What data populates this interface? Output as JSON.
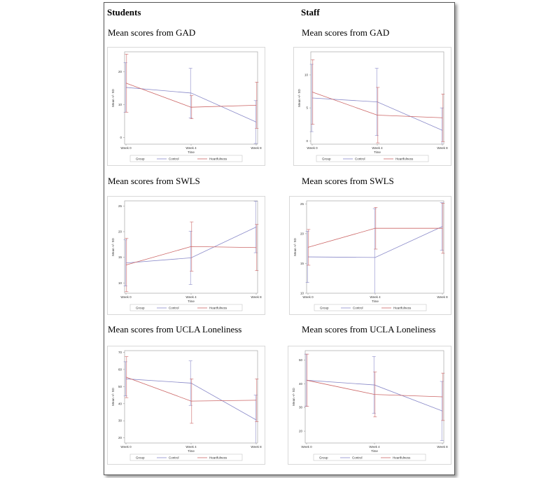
{
  "columns": {
    "students": "Students",
    "staff": "Staff"
  },
  "colors": {
    "control": "#8a8ac9",
    "heartfulness": "#cc6666"
  },
  "common": {
    "xlabel": "Time",
    "ylabel": "Mean +/- SD",
    "legend_title": "Group",
    "series_names": [
      "Control",
      "Heartfulness"
    ],
    "categories": [
      "Week 0",
      "Week 4",
      "Week 8"
    ]
  },
  "chart_data": [
    {
      "id": "students-gad",
      "title": "Mean scores from GAD",
      "type": "line",
      "categories": [
        "Week 0",
        "Week 4",
        "Week 8"
      ],
      "xlabel": "Time",
      "ylabel": "Mean +/- SD",
      "ylim": [
        -2,
        26
      ],
      "yticks": [
        0,
        10,
        20
      ],
      "legend": "bottom",
      "series": [
        {
          "name": "Control",
          "values": [
            15.2,
            13.5,
            4.7
          ],
          "sd": [
            7.5,
            7.5,
            6.5
          ]
        },
        {
          "name": "Heartfulness",
          "values": [
            16.5,
            9.2,
            9.8
          ],
          "sd": [
            8.8,
            3.5,
            7.0
          ]
        }
      ]
    },
    {
      "id": "staff-gad",
      "title": "Mean scores from GAD",
      "type": "line",
      "categories": [
        "Week 0",
        "Week 4",
        "Week 8"
      ],
      "xlabel": "Time",
      "ylabel": "Mean +/- SD",
      "ylim": [
        -0.5,
        13.5
      ],
      "yticks": [
        0,
        5,
        10
      ],
      "legend": "bottom",
      "series": [
        {
          "name": "Control",
          "values": [
            6.5,
            5.9,
            1.6
          ],
          "sd": [
            5.1,
            5.1,
            3.4
          ]
        },
        {
          "name": "Heartfulness",
          "values": [
            7.4,
            3.9,
            3.5
          ],
          "sd": [
            4.9,
            4.2,
            3.6
          ]
        }
      ]
    },
    {
      "id": "students-swls",
      "title": "Mean scores from SWLS",
      "type": "line",
      "categories": [
        "Week 0",
        "Week 4",
        "Week 8"
      ],
      "xlabel": "Time",
      "ylabel": "Mean +/- SD",
      "ylim": [
        8,
        26
      ],
      "yticks": [
        10,
        15,
        20,
        25
      ],
      "legend": "bottom",
      "series": [
        {
          "name": "Control",
          "values": [
            13.9,
            14.9,
            20.9
          ],
          "sd": [
            4.5,
            5.2,
            5.0
          ]
        },
        {
          "name": "Heartfulness",
          "values": [
            13.5,
            17.1,
            16.9
          ],
          "sd": [
            5.2,
            4.8,
            4.5
          ]
        }
      ]
    },
    {
      "id": "staff-swls",
      "title": "Mean scores from SWLS",
      "type": "line",
      "categories": [
        "Week 0",
        "Week 4",
        "Week 8"
      ],
      "xlabel": "Time",
      "ylabel": "Mean +/- SD",
      "ylim": [
        10,
        25.5
      ],
      "yticks": [
        10,
        15,
        20,
        25
      ],
      "legend": "bottom",
      "series": [
        {
          "name": "Control",
          "values": [
            16.1,
            16.0,
            21.2
          ],
          "sd": [
            4.3,
            8.2,
            4.0
          ]
        },
        {
          "name": "Heartfulness",
          "values": [
            17.7,
            20.9,
            20.9
          ],
          "sd": [
            3.0,
            3.5,
            4.2
          ]
        }
      ]
    },
    {
      "id": "students-ucla",
      "title": "Mean scores from UCLA Loneliness",
      "type": "line",
      "categories": [
        "Week 0",
        "Week 4",
        "Week 8"
      ],
      "xlabel": "Time",
      "ylabel": "Mean +/- SD",
      "ylim": [
        17,
        71
      ],
      "yticks": [
        20,
        30,
        40,
        50,
        60,
        70
      ],
      "legend": "bottom",
      "series": [
        {
          "name": "Control",
          "values": [
            54.5,
            52.0,
            30.5
          ],
          "sd": [
            10.0,
            13.0,
            14.5
          ]
        },
        {
          "name": "Heartfulness",
          "values": [
            55.5,
            41.5,
            42.0
          ],
          "sd": [
            12.0,
            13.0,
            12.5
          ]
        }
      ]
    },
    {
      "id": "staff-ucla",
      "title": "Mean scores from UCLA Loneliness",
      "type": "line",
      "categories": [
        "Week 0",
        "Week 4",
        "Week 8"
      ],
      "xlabel": "Time",
      "ylabel": "Mean +/- SD",
      "ylim": [
        15,
        54
      ],
      "yticks": [
        20,
        30,
        40,
        50
      ],
      "legend": "bottom",
      "series": [
        {
          "name": "Control",
          "values": [
            41.5,
            39.5,
            28.5
          ],
          "sd": [
            11.0,
            12.0,
            12.5
          ]
        },
        {
          "name": "Heartfulness",
          "values": [
            41.5,
            35.5,
            34.5
          ],
          "sd": [
            11.0,
            9.5,
            10.0
          ]
        }
      ]
    }
  ]
}
